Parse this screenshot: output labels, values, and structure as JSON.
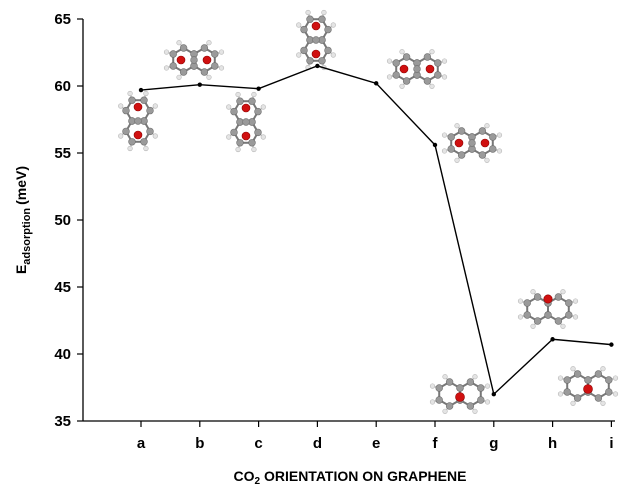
{
  "chart_data": {
    "type": "line",
    "categories": [
      "a",
      "b",
      "c",
      "d",
      "e",
      "f",
      "g",
      "h",
      "i"
    ],
    "series": [
      {
        "values": [
          59.7,
          60.1,
          59.8,
          61.5,
          60.2,
          55.6,
          37.0,
          41.1,
          40.7
        ]
      }
    ],
    "ylabel": "E",
    "ylabel_sub": "adsorption",
    "ylabel_unit": "(meV)",
    "xlabel_pre": "CO",
    "xlabel_sub": "2",
    "xlabel_post": " ORIENTATION ON GRAPHENE",
    "ylim": [
      35,
      65
    ],
    "yticks": [
      35,
      40,
      45,
      50,
      55,
      60,
      65
    ],
    "grid": false,
    "legend": "none",
    "line_color": "#000000",
    "inset_icons": [
      "co2-on-graphene-orientation-a-icon",
      "co2-on-graphene-orientation-b-icon",
      "co2-on-graphene-orientation-c-icon",
      "co2-on-graphene-orientation-d-icon",
      "co2-on-graphene-orientation-e-icon",
      "co2-on-graphene-orientation-f-icon",
      "co2-on-graphene-orientation-g-icon",
      "co2-on-graphene-orientation-h-icon",
      "co2-on-graphene-orientation-i-icon"
    ],
    "colors": {
      "carbon": "#9a9a9a",
      "oxygen": "#d01010",
      "hydrogen": "#e4e4e4",
      "bond": "#777777"
    }
  }
}
